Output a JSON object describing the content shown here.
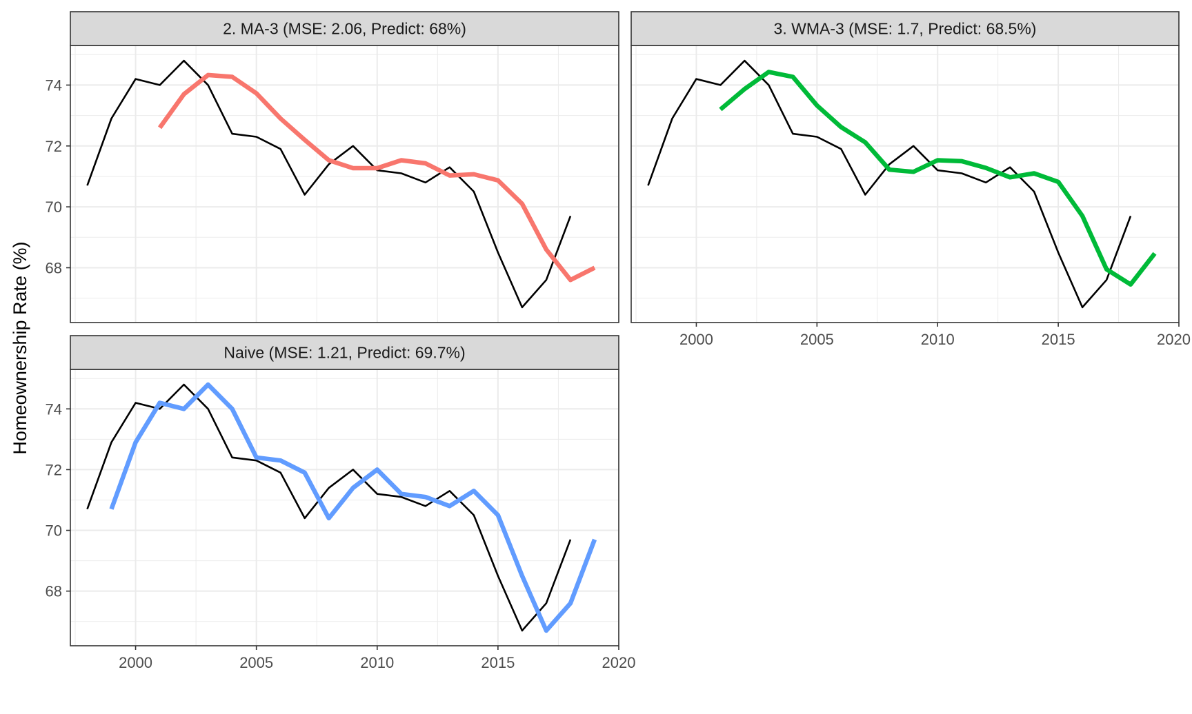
{
  "chart_data": {
    "type": "line",
    "ylabel": "Homeownership Rate (%)",
    "xlabel": "",
    "xlim": [
      1997.3,
      2020
    ],
    "ylim": [
      66.2,
      75.3
    ],
    "x_ticks": [
      2000,
      2005,
      2010,
      2015,
      2020
    ],
    "x_tick_labels": [
      "2000",
      "2005",
      "2010",
      "2015",
      "2020"
    ],
    "y_ticks": [
      68,
      70,
      72,
      74
    ],
    "y_tick_labels": [
      "68",
      "70",
      "72",
      "74"
    ],
    "grid": true,
    "legend": "none",
    "actual": {
      "x": [
        1998,
        1999,
        2000,
        2001,
        2002,
        2003,
        2004,
        2005,
        2006,
        2007,
        2008,
        2009,
        2010,
        2011,
        2012,
        2013,
        2014,
        2015,
        2016,
        2017,
        2018
      ],
      "values": [
        70.7,
        72.9,
        74.2,
        74.0,
        74.8,
        74.0,
        72.4,
        72.3,
        71.9,
        70.4,
        71.4,
        72.0,
        71.2,
        71.1,
        70.8,
        71.3,
        70.5,
        68.5,
        66.7,
        67.6,
        69.7
      ],
      "color": "#000000"
    },
    "panels": [
      {
        "id": "ma3",
        "title": "2. MA-3 (MSE: 2.06, Predict: 68%)",
        "color": "#F8766D",
        "forecast_x": [
          2001,
          2002,
          2003,
          2004,
          2005,
          2006,
          2007,
          2008,
          2009,
          2010,
          2011,
          2012,
          2013,
          2014,
          2015,
          2016,
          2017,
          2018,
          2019
        ],
        "forecast_values": [
          72.6,
          73.7,
          74.33,
          74.27,
          73.73,
          72.9,
          72.2,
          71.53,
          71.27,
          71.27,
          71.53,
          71.43,
          71.03,
          71.07,
          70.87,
          70.1,
          68.6,
          67.6,
          68.0
        ]
      },
      {
        "id": "wma3",
        "title": "3. WMA-3 (MSE: 1.7, Predict: 68.5%)",
        "color": "#00BA38",
        "forecast_x": [
          2001,
          2002,
          2003,
          2004,
          2005,
          2006,
          2007,
          2008,
          2009,
          2010,
          2011,
          2012,
          2013,
          2014,
          2015,
          2016,
          2017,
          2018,
          2019
        ],
        "forecast_values": [
          73.2,
          73.87,
          74.43,
          74.27,
          73.33,
          72.62,
          72.12,
          71.22,
          71.15,
          71.53,
          71.5,
          71.28,
          70.97,
          71.1,
          70.82,
          69.7,
          67.95,
          67.45,
          68.47
        ]
      },
      {
        "id": "naive",
        "title": "Naive (MSE: 1.21, Predict: 69.7%)",
        "color": "#619CFF",
        "forecast_x": [
          1999,
          2000,
          2001,
          2002,
          2003,
          2004,
          2005,
          2006,
          2007,
          2008,
          2009,
          2010,
          2011,
          2012,
          2013,
          2014,
          2015,
          2016,
          2017,
          2018,
          2019
        ],
        "forecast_values": [
          70.7,
          72.9,
          74.2,
          74.0,
          74.8,
          74.0,
          72.4,
          72.3,
          71.9,
          70.4,
          71.4,
          72.0,
          71.2,
          71.1,
          70.8,
          71.3,
          70.5,
          68.5,
          66.7,
          67.6,
          69.7
        ]
      }
    ]
  }
}
